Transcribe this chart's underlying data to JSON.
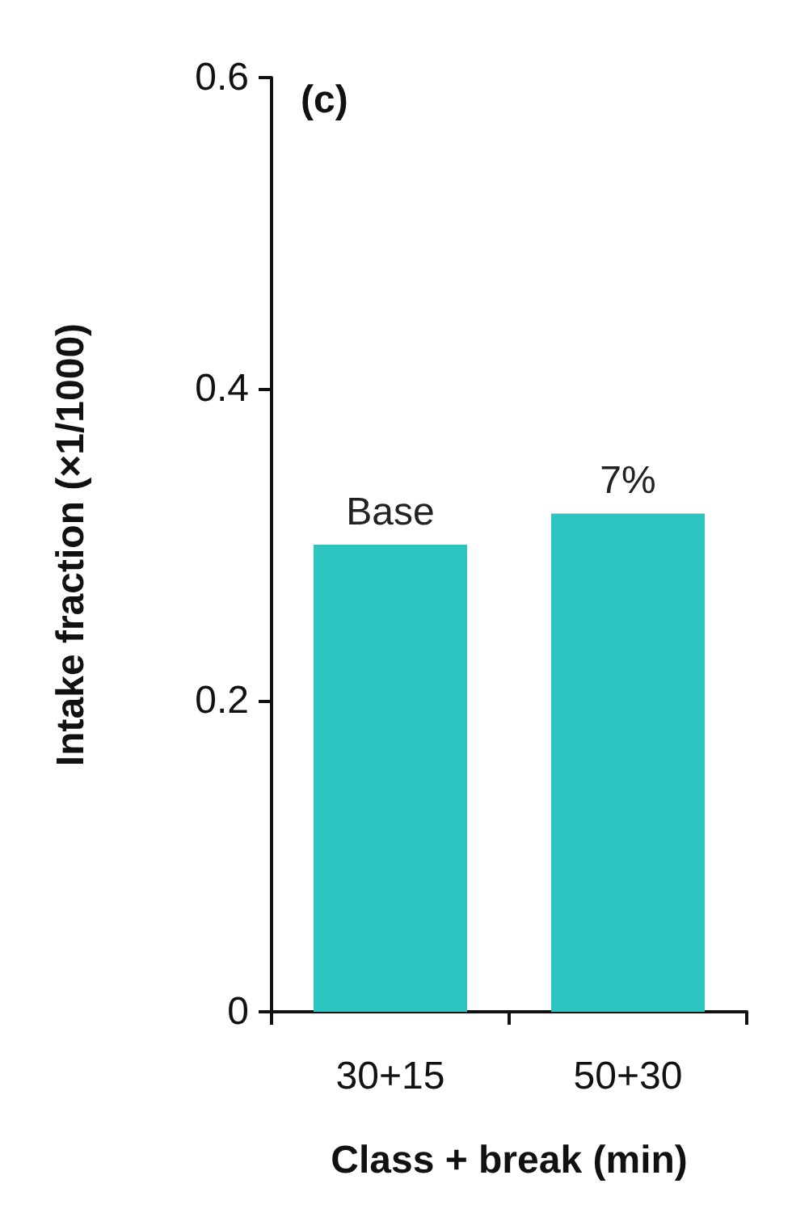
{
  "chart_data": {
    "type": "bar",
    "categories": [
      "30+15",
      "50+30"
    ],
    "values": [
      0.3,
      0.32
    ],
    "color": "#2ec4c0",
    "xlabel": "Class + break (min)",
    "ylabel": "Intake fraction (×1/1000)",
    "ylim": [
      0,
      0.6
    ],
    "yticks": [
      0,
      {
        "value": 0.2,
        "label": "0.2"
      },
      {
        "value": 0.4,
        "label": "0.4"
      },
      {
        "value": 0.6,
        "label": "0.6"
      }
    ],
    "annotations": [
      "(c)",
      {
        "text": "Base",
        "x": "30+15",
        "y": 0.3
      },
      {
        "text": "7%",
        "x": "50+30",
        "y": 0.32
      }
    ],
    "grid": false
  }
}
